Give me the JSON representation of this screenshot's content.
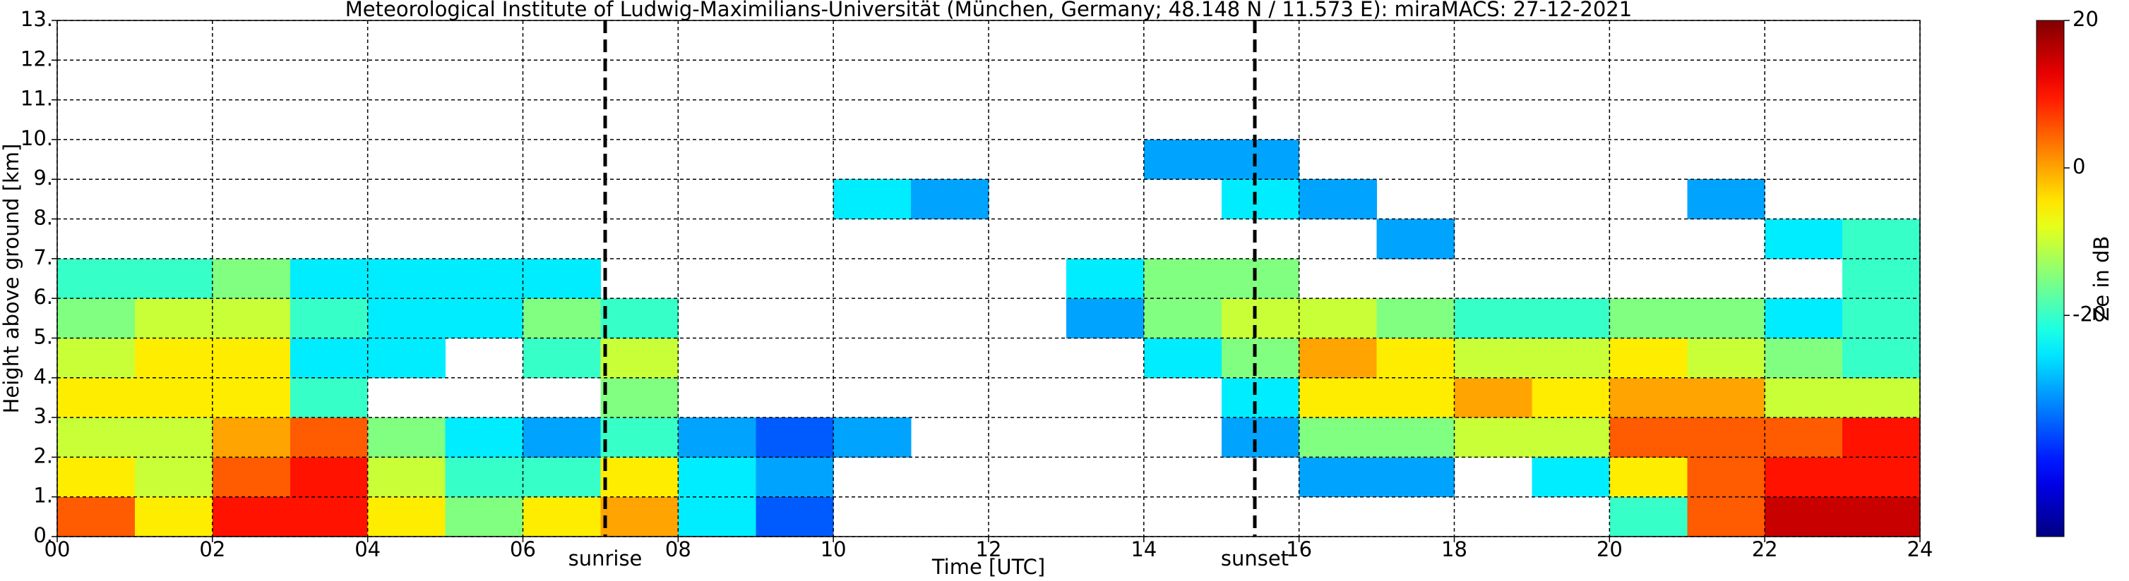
{
  "chart_data": {
    "type": "heatmap",
    "title": "Meteorological Institute of Ludwig-Maximilians-Universität (München, Germany; 48.148 N / 11.573 E):    miraMACS: 27-12-2021",
    "xlabel": "Time [UTC]",
    "ylabel": "Height above ground [km]",
    "zlabel": "Ze in dB",
    "colormap": "jet",
    "grid": true,
    "xlim": [
      0,
      24
    ],
    "xticks": [
      {
        "value": 0,
        "label": "00"
      },
      {
        "value": 2,
        "label": "02"
      },
      {
        "value": 4,
        "label": "04"
      },
      {
        "value": 6,
        "label": "06"
      },
      {
        "value": 8,
        "label": "08"
      },
      10,
      12,
      14,
      16,
      18,
      20,
      22,
      24
    ],
    "ylim": [
      0,
      13
    ],
    "yticks": [
      {
        "value": 0,
        "label": "0."
      },
      {
        "value": 1,
        "label": "1."
      },
      {
        "value": 2,
        "label": "2."
      },
      {
        "value": 3,
        "label": "3."
      },
      {
        "value": 4,
        "label": "4."
      },
      {
        "value": 5,
        "label": "5."
      },
      {
        "value": 6,
        "label": "6."
      },
      {
        "value": 7,
        "label": "7."
      },
      {
        "value": 8,
        "label": "8."
      },
      {
        "value": 9,
        "label": "9."
      },
      {
        "value": 10,
        "label": "10."
      },
      {
        "value": 11,
        "label": "11."
      },
      {
        "value": 12,
        "label": "12."
      },
      {
        "value": 13,
        "label": "13."
      }
    ],
    "zlim": [
      -50,
      20
    ],
    "zticks": [
      20,
      0,
      -20
    ],
    "x_bins": [
      0,
      1,
      2,
      3,
      4,
      5,
      6,
      7,
      8,
      9,
      10,
      11,
      12,
      13,
      14,
      15,
      16,
      17,
      18,
      19,
      20,
      21,
      22,
      23,
      24
    ],
    "y_bins": [
      0,
      1,
      2,
      3,
      4,
      5,
      6,
      7,
      8,
      9,
      10,
      11,
      12,
      13
    ],
    "values": [
      [
        5,
        -5,
        10,
        10,
        -5,
        -15,
        -5,
        0,
        -25,
        -35,
        null,
        null,
        null,
        null,
        null,
        null,
        null,
        null,
        null,
        null,
        -20,
        5,
        15,
        15
      ],
      [
        -5,
        -10,
        5,
        10,
        -10,
        -20,
        -20,
        -5,
        -25,
        -30,
        null,
        null,
        null,
        null,
        null,
        null,
        -30,
        -30,
        null,
        -25,
        -5,
        5,
        10,
        10
      ],
      [
        -10,
        -10,
        0,
        5,
        -15,
        -25,
        -30,
        -20,
        -30,
        -35,
        -30,
        null,
        null,
        null,
        null,
        -30,
        -15,
        -15,
        -10,
        -10,
        5,
        5,
        5,
        10
      ],
      [
        -5,
        -5,
        -5,
        -20,
        null,
        null,
        null,
        -15,
        null,
        null,
        null,
        null,
        null,
        null,
        null,
        -25,
        -5,
        -5,
        0,
        -5,
        0,
        0,
        -10,
        -10
      ],
      [
        -10,
        -5,
        -5,
        -25,
        -25,
        null,
        -20,
        -10,
        null,
        null,
        null,
        null,
        null,
        null,
        -25,
        -15,
        0,
        -5,
        -10,
        -10,
        -5,
        -10,
        -15,
        -20
      ],
      [
        -15,
        -10,
        -10,
        -20,
        -25,
        -25,
        -15,
        -20,
        null,
        null,
        null,
        null,
        null,
        -30,
        -15,
        -10,
        -10,
        -15,
        -20,
        -20,
        -15,
        -15,
        -25,
        -20
      ],
      [
        -20,
        -20,
        -15,
        -25,
        -25,
        -25,
        -25,
        null,
        null,
        null,
        null,
        null,
        null,
        -25,
        -15,
        -15,
        null,
        null,
        null,
        null,
        null,
        null,
        null,
        -20
      ],
      [
        null,
        null,
        null,
        null,
        null,
        null,
        null,
        null,
        null,
        null,
        null,
        null,
        null,
        null,
        null,
        null,
        null,
        -30,
        null,
        null,
        null,
        null,
        -25,
        -20
      ],
      [
        null,
        null,
        null,
        null,
        null,
        null,
        null,
        null,
        null,
        null,
        -25,
        -30,
        null,
        null,
        null,
        -25,
        -30,
        null,
        null,
        null,
        null,
        -30,
        null,
        null
      ],
      [
        null,
        null,
        null,
        null,
        null,
        null,
        null,
        null,
        null,
        null,
        null,
        null,
        null,
        null,
        -30,
        -30,
        null,
        null,
        null,
        null,
        null,
        null,
        null,
        null
      ],
      [
        null,
        null,
        null,
        null,
        null,
        null,
        null,
        null,
        null,
        null,
        null,
        null,
        null,
        null,
        null,
        null,
        null,
        null,
        null,
        null,
        null,
        null,
        null,
        null
      ],
      [
        null,
        null,
        null,
        null,
        null,
        null,
        null,
        null,
        null,
        null,
        null,
        null,
        null,
        null,
        null,
        null,
        null,
        null,
        null,
        null,
        null,
        null,
        null,
        null
      ],
      [
        null,
        null,
        null,
        null,
        null,
        null,
        null,
        null,
        null,
        null,
        null,
        null,
        null,
        null,
        null,
        null,
        null,
        null,
        null,
        null,
        null,
        null,
        null,
        null
      ]
    ],
    "vlines": [
      {
        "x": 7.06,
        "label": "sunrise"
      },
      {
        "x": 15.43,
        "label": "sunset"
      }
    ]
  }
}
